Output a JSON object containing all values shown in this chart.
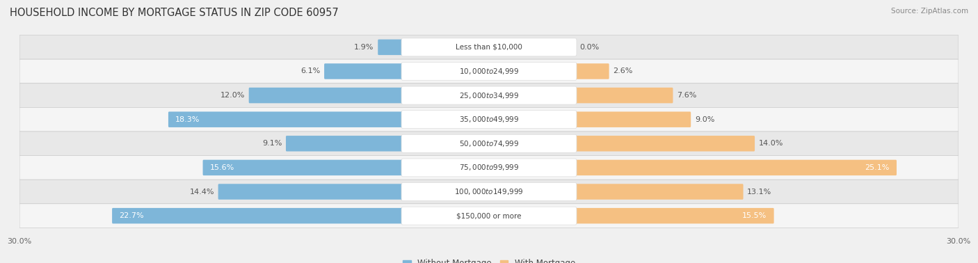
{
  "title": "HOUSEHOLD INCOME BY MORTGAGE STATUS IN ZIP CODE 60957",
  "source": "Source: ZipAtlas.com",
  "categories": [
    "Less than $10,000",
    "$10,000 to $24,999",
    "$25,000 to $34,999",
    "$35,000 to $49,999",
    "$50,000 to $74,999",
    "$75,000 to $99,999",
    "$100,000 to $149,999",
    "$150,000 or more"
  ],
  "without_mortgage": [
    1.9,
    6.1,
    12.0,
    18.3,
    9.1,
    15.6,
    14.4,
    22.7
  ],
  "with_mortgage": [
    0.0,
    2.6,
    7.6,
    9.0,
    14.0,
    25.1,
    13.1,
    15.5
  ],
  "color_without": "#7EB6D9",
  "color_with": "#F5C082",
  "xlim": 30.0,
  "background_color": "#f0f0f0",
  "row_colors": [
    "#e8e8e8",
    "#f5f5f5"
  ],
  "title_fontsize": 10.5,
  "label_fontsize": 8,
  "tick_fontsize": 8,
  "legend_fontsize": 8.5,
  "cat_label_fontsize": 7.5
}
